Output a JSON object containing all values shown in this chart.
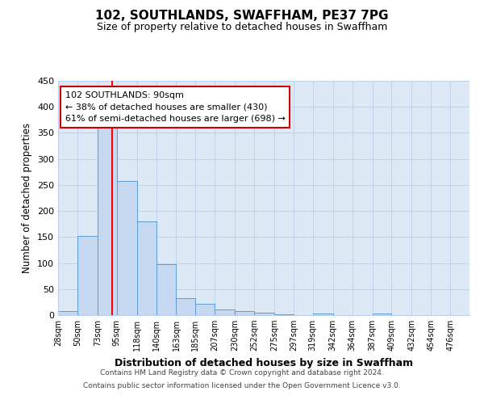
{
  "title": "102, SOUTHLANDS, SWAFFHAM, PE37 7PG",
  "subtitle": "Size of property relative to detached houses in Swaffham",
  "xlabel": "Distribution of detached houses by size in Swaffham",
  "ylabel": "Number of detached properties",
  "bin_labels": [
    "28sqm",
    "50sqm",
    "73sqm",
    "95sqm",
    "118sqm",
    "140sqm",
    "163sqm",
    "185sqm",
    "207sqm",
    "230sqm",
    "252sqm",
    "275sqm",
    "297sqm",
    "319sqm",
    "342sqm",
    "364sqm",
    "387sqm",
    "409sqm",
    "432sqm",
    "454sqm",
    "476sqm"
  ],
  "bin_edges": [
    28,
    50,
    73,
    95,
    118,
    140,
    163,
    185,
    207,
    230,
    252,
    275,
    297,
    319,
    342,
    364,
    387,
    409,
    432,
    454,
    476
  ],
  "bar_heights": [
    7,
    152,
    370,
    257,
    180,
    97,
    33,
    21,
    11,
    8,
    4,
    1,
    0,
    3,
    0,
    0,
    3,
    0,
    0,
    0,
    0
  ],
  "bar_color": "#c5d8f0",
  "bar_edge_color": "#5b9bd5",
  "property_value": 90,
  "red_line_color": "#ff0000",
  "annotation_text_line1": "102 SOUTHLANDS: 90sqm",
  "annotation_text_line2": "← 38% of detached houses are smaller (430)",
  "annotation_text_line3": "61% of semi-detached houses are larger (698) →",
  "annotation_box_color": "#ffffff",
  "annotation_box_edge_color": "#cc0000",
  "ylim": [
    0,
    450
  ],
  "yticks": [
    0,
    50,
    100,
    150,
    200,
    250,
    300,
    350,
    400,
    450
  ],
  "background_color": "#dde8f5",
  "footer_line1": "Contains HM Land Registry data © Crown copyright and database right 2024.",
  "footer_line2": "Contains public sector information licensed under the Open Government Licence v3.0."
}
